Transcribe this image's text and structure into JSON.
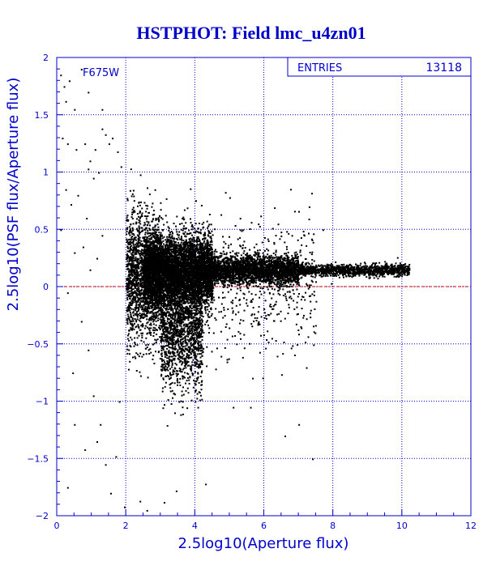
{
  "chart_data": {
    "type": "scatter",
    "title": "HSTPHOT: Field lmc_u4zn01",
    "xlabel": "2.5log10(Aperture flux)",
    "ylabel": "2.5log10(PSF flux/Aperture flux)",
    "filter_label": "F675W",
    "stats": {
      "label": "ENTRIES",
      "value": "13118"
    },
    "xlim": [
      0,
      12
    ],
    "ylim": [
      -2,
      2
    ],
    "x_ticks": [
      0,
      2,
      4,
      6,
      8,
      10,
      12
    ],
    "y_ticks": [
      -2,
      -1.5,
      -1,
      -0.5,
      0,
      0.5,
      1,
      1.5,
      2
    ],
    "x_tick_labels": [
      "0",
      "2",
      "4",
      "6",
      "8",
      "10",
      "12"
    ],
    "y_tick_labels": [
      "−2",
      "−1.5",
      "−1",
      "−0.5",
      "0",
      "0.5",
      "1",
      "1.5",
      "2"
    ],
    "grid": true,
    "reference_line": {
      "y": 0,
      "color": "#cc0000"
    },
    "colors": {
      "axes": "#0000cc",
      "title": "#0000cc",
      "points": "#000000"
    },
    "points": [
      [
        0.1,
        1.85
      ],
      [
        0.2,
        1.75
      ],
      [
        0.25,
        1.62
      ],
      [
        0.35,
        1.8
      ],
      [
        0.5,
        1.55
      ],
      [
        0.7,
        1.9
      ],
      [
        0.9,
        1.7
      ],
      [
        1.3,
        1.55
      ],
      [
        0.15,
        1.3
      ],
      [
        0.3,
        1.25
      ],
      [
        0.55,
        1.2
      ],
      [
        0.8,
        1.25
      ],
      [
        0.95,
        1.1
      ],
      [
        1.1,
        1.2
      ],
      [
        1.3,
        1.38
      ],
      [
        1.4,
        1.33
      ],
      [
        1.5,
        1.25
      ],
      [
        1.6,
        1.3
      ],
      [
        1.75,
        1.18
      ],
      [
        1.85,
        1.05
      ],
      [
        1.2,
        1.0
      ],
      [
        1.05,
        0.95
      ],
      [
        0.9,
        1.03
      ],
      [
        0.25,
        0.85
      ],
      [
        0.4,
        0.72
      ],
      [
        0.6,
        0.8
      ],
      [
        0.85,
        0.6
      ],
      [
        0.1,
        0.5
      ],
      [
        0.5,
        0.3
      ],
      [
        0.75,
        0.35
      ],
      [
        0.95,
        0.15
      ],
      [
        1.15,
        0.25
      ],
      [
        1.3,
        0.45
      ],
      [
        0.3,
        -0.05
      ],
      [
        0.7,
        -0.3
      ],
      [
        0.9,
        -0.55
      ],
      [
        0.45,
        -0.75
      ],
      [
        1.05,
        -0.95
      ],
      [
        0.5,
        -1.2
      ],
      [
        0.8,
        -1.42
      ],
      [
        1.15,
        -1.35
      ],
      [
        1.25,
        -1.2
      ],
      [
        1.4,
        -1.55
      ],
      [
        0.3,
        -1.75
      ],
      [
        1.55,
        -1.8
      ],
      [
        1.7,
        -1.48
      ],
      [
        1.8,
        -1.0
      ],
      [
        1.95,
        -1.92
      ],
      [
        2.4,
        -1.87
      ],
      [
        2.6,
        -1.95
      ],
      [
        3.1,
        -1.88
      ],
      [
        3.45,
        -1.78
      ],
      [
        4.3,
        -1.72
      ],
      [
        6.6,
        -1.3
      ],
      [
        7.4,
        -1.5
      ],
      [
        7.0,
        -1.2
      ],
      [
        5.6,
        -1.05
      ],
      [
        5.1,
        -1.05
      ],
      [
        5.0,
        0.78
      ],
      [
        5.3,
        0.6
      ],
      [
        5.9,
        0.62
      ],
      [
        6.4,
        0.55
      ],
      [
        7.3,
        0.7
      ],
      [
        7.7,
        0.5
      ],
      [
        6.1,
        0.42
      ],
      [
        6.8,
        0.45
      ]
    ],
    "point_clusters": [
      {
        "x_range": [
          2.0,
          3.0
        ],
        "y_center": 0.12,
        "y_spread": 0.55,
        "count": 1600
      },
      {
        "x_range": [
          2.5,
          4.5
        ],
        "y_center": 0.14,
        "y_spread": 0.3,
        "count": 5200
      },
      {
        "x_range": [
          3.0,
          4.2
        ],
        "y_center": -0.35,
        "y_spread": 0.55,
        "count": 1600
      },
      {
        "x_range": [
          4.5,
          7.0
        ],
        "y_center": 0.15,
        "y_spread": 0.12,
        "count": 2600
      },
      {
        "x_range": [
          7.0,
          10.2
        ],
        "y_center": 0.15,
        "y_spread": 0.05,
        "count": 1200
      },
      {
        "x_range": [
          2.0,
          7.5
        ],
        "y_center": 0.0,
        "y_spread": 0.6,
        "count": 850
      }
    ]
  }
}
